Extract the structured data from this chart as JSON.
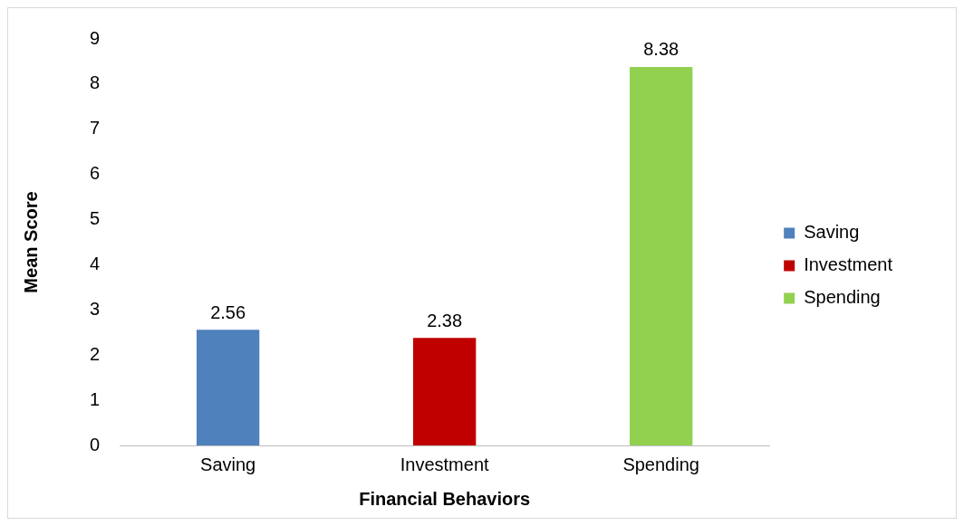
{
  "chart_data": {
    "type": "bar",
    "xlabel": "Financial Behaviors",
    "ylabel": "Mean Score",
    "categories": [
      "Saving",
      "Investment",
      "Spending"
    ],
    "series": [
      {
        "name": "Saving",
        "color": "#4f81bd",
        "values": [
          2.56,
          null,
          null
        ]
      },
      {
        "name": "Investment",
        "color": "#c00000",
        "values": [
          null,
          2.38,
          null
        ]
      },
      {
        "name": "Spending",
        "color": "#92d050",
        "values": [
          null,
          null,
          8.38
        ]
      }
    ],
    "ylim": [
      0,
      9
    ],
    "yticks": [
      0,
      1,
      2,
      3,
      4,
      5,
      6,
      7,
      8,
      9
    ],
    "grid": false,
    "legend": "right",
    "data_labels": true
  }
}
